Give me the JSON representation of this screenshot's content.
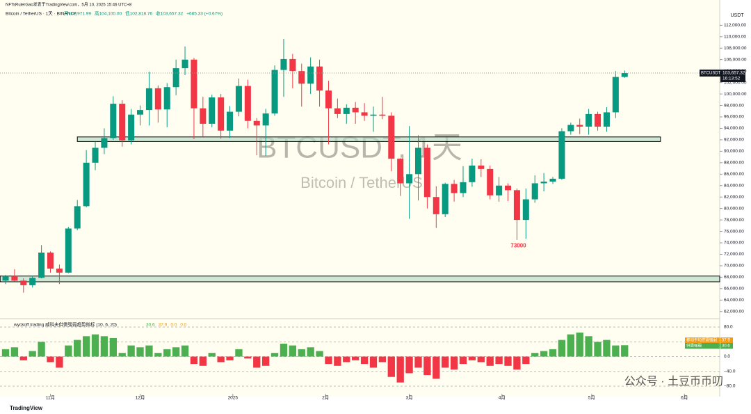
{
  "header": {
    "byline": "NFTsRulerGao发表于TradingView.com，5月 10, 2025 15:46 UTC+8",
    "symbol": "Bitcoin / TetherUS · 1天 · BINANCE",
    "ohlc": [
      "开102,971.99",
      "高104,100.00",
      "低102,818.76",
      "收103,657.32",
      "+685.33 (+0.67%)"
    ]
  },
  "watermark": {
    "ticker": "BTCUSDT, 1天",
    "name": "Bitcoin / TetherUS",
    "footer": "公众号 · 土豆币币叨"
  },
  "brand": "TradingView",
  "chart_data": [
    {
      "type": "candlestick",
      "currency": "USDT",
      "up_color": "#089981",
      "down_color": "#f23645",
      "open": [
        67400,
        68200,
        67400,
        66600,
        67900,
        72300,
        69500,
        68800,
        76500,
        80400,
        88000,
        90600,
        92300,
        98300,
        91900,
        96400,
        97200,
        101000,
        97300,
        101200,
        104500,
        106000,
        97500,
        94800,
        99400,
        93600,
        96900,
        101400,
        95300,
        94500,
        96600,
        104200,
        106100,
        104000,
        101800,
        104800,
        100600,
        97500,
        96500,
        97600,
        96800,
        96200,
        96400,
        96200,
        88700,
        84400,
        86000,
        90600,
        82000,
        79000,
        84300,
        82700,
        84600,
        87500,
        86900,
        82300,
        84000,
        83200,
        78000,
        81600,
        84400,
        84700,
        85200,
        93500,
        94600,
        94300,
        96500,
        94300,
        96800,
        102971.99
      ],
      "high": [
        68400,
        69400,
        67800,
        68300,
        73600,
        72500,
        70200,
        76800,
        81500,
        90200,
        91700,
        94000,
        99600,
        98900,
        97400,
        98000,
        103900,
        101500,
        101900,
        106000,
        108300,
        106300,
        99500,
        99900,
        100000,
        97900,
        102700,
        102500,
        95800,
        97400,
        105000,
        109600,
        107000,
        105300,
        106400,
        106000,
        102300,
        99200,
        98200,
        98600,
        98400,
        97800,
        99500,
        96800,
        88800,
        94400,
        92800,
        91200,
        83900,
        84500,
        85000,
        87400,
        88700,
        88600,
        87500,
        85500,
        84400,
        83500,
        83500,
        85800,
        86200,
        85500,
        94000,
        95000,
        95700,
        97400,
        96900,
        97700,
        104000,
        104100
      ],
      "low": [
        66800,
        67300,
        65300,
        66200,
        67800,
        68800,
        66800,
        68700,
        76200,
        80200,
        86700,
        89500,
        92000,
        90800,
        91200,
        94500,
        94500,
        95000,
        94200,
        99800,
        103300,
        92100,
        92500,
        94200,
        92200,
        92300,
        96100,
        94000,
        89300,
        89200,
        96200,
        99500,
        101000,
        97800,
        100000,
        97800,
        91200,
        95800,
        94800,
        94800,
        95300,
        93400,
        95600,
        86500,
        82200,
        78200,
        81400,
        80000,
        76600,
        78500,
        81200,
        82000,
        83800,
        85500,
        81600,
        81200,
        81300,
        74500,
        74700,
        81000,
        83000,
        84300,
        85000,
        92900,
        93000,
        92900,
        93600,
        93400,
        95800,
        102818.76
      ],
      "close": [
        68200,
        67400,
        66600,
        67900,
        72300,
        69500,
        68800,
        76500,
        80400,
        88000,
        90600,
        92300,
        98300,
        91900,
        96400,
        97200,
        101000,
        97300,
        101200,
        104500,
        106000,
        97500,
        94800,
        99400,
        93600,
        96900,
        101400,
        95300,
        94500,
        96600,
        104200,
        106100,
        104000,
        101800,
        104800,
        100600,
        97500,
        96500,
        97600,
        96800,
        96200,
        96400,
        96200,
        88700,
        84400,
        86000,
        90600,
        82000,
        79000,
        84300,
        82700,
        84600,
        87500,
        86900,
        82300,
        84000,
        83200,
        78000,
        81600,
        84400,
        84700,
        85200,
        93500,
        94600,
        94300,
        96500,
        94300,
        96800,
        102971.99,
        103657.32
      ],
      "last_price": {
        "value": 103657.32,
        "label": "103,657.32"
      },
      "ticker": "BTCUSDT",
      "countdown": "16:13:52",
      "annotation": {
        "text": "73000",
        "value": 73000,
        "index": 56
      },
      "zones": [
        {
          "low": 91700,
          "high": 92500,
          "from": 8,
          "to": 73
        },
        {
          "low": 67200,
          "high": 68200,
          "from": -0.6,
          "to": 79.6
        }
      ],
      "xlim": [
        -0.62,
        79.6
      ],
      "xticks": [
        {
          "value": 5,
          "label": "11月"
        },
        {
          "value": 15,
          "label": "12月"
        },
        {
          "value": 25.33,
          "label": "2025"
        },
        {
          "value": 35.67,
          "label": "2月"
        },
        {
          "value": 45,
          "label": "3月"
        },
        {
          "value": 55.33,
          "label": "4月"
        },
        {
          "value": 65.33,
          "label": "5月"
        },
        {
          "value": 75.67,
          "label": "6月"
        }
      ],
      "ylim": [
        61000,
        113500
      ],
      "yticks": [
        {
          "value": 62000,
          "label": "62,000.00"
        },
        {
          "value": 64000,
          "label": "64,000.00"
        },
        {
          "value": 66000,
          "label": "66,000.00"
        },
        {
          "value": 68000,
          "label": "68,000.00"
        },
        {
          "value": 70000,
          "label": "70,000.00"
        },
        {
          "value": 72000,
          "label": "72,000.00"
        },
        {
          "value": 74000,
          "label": "74,000.00"
        },
        {
          "value": 76000,
          "label": "76,000.00"
        },
        {
          "value": 78000,
          "label": "78,000.00"
        },
        {
          "value": 80000,
          "label": "80,000.00"
        },
        {
          "value": 82000,
          "label": "82,000.00"
        },
        {
          "value": 84000,
          "label": "84,000.00"
        },
        {
          "value": 86000,
          "label": "86,000.00"
        },
        {
          "value": 88000,
          "label": "88,000.00"
        },
        {
          "value": 90000,
          "label": "90,000.00"
        },
        {
          "value": 92000,
          "label": "92,000.00"
        },
        {
          "value": 94000,
          "label": "94,000.00"
        },
        {
          "value": 96000,
          "label": "96,000.00"
        },
        {
          "value": 98000,
          "label": "98,000.00"
        },
        {
          "value": 100000,
          "label": "100,000.00"
        },
        {
          "value": 102000,
          "label": "102,000.00"
        },
        {
          "value": 104000,
          "label": "104,000.00"
        },
        {
          "value": 106000,
          "label": "106,000.00"
        },
        {
          "value": 108000,
          "label": "108,000.00"
        },
        {
          "value": 110000,
          "label": "110,000.00"
        },
        {
          "value": 112000,
          "label": "112,000.00"
        }
      ]
    },
    {
      "type": "histogram",
      "title": "wyckoff trading 威科夫供需强弱趋势指标 (10, 6, 20)",
      "readouts": [
        "30.6",
        "37.9",
        "0.0",
        "0.0"
      ],
      "pos_color": "#4caf50",
      "neg_color": "#f23645",
      "values": [
        20,
        25,
        -10,
        15,
        40,
        -15,
        -30,
        30,
        45,
        55,
        60,
        55,
        50,
        10,
        30,
        25,
        30,
        10,
        20,
        25,
        30,
        -20,
        -25,
        10,
        -15,
        -10,
        20,
        -5,
        -30,
        -25,
        10,
        35,
        30,
        20,
        25,
        15,
        -20,
        -25,
        -15,
        -10,
        -20,
        -30,
        -15,
        -55,
        -70,
        -45,
        -30,
        -50,
        -60,
        -30,
        -35,
        -20,
        -10,
        -15,
        -25,
        -20,
        -25,
        -35,
        -20,
        10,
        15,
        20,
        45,
        60,
        65,
        55,
        40,
        45,
        30,
        30.6
      ],
      "tags": [
        {
          "name": "移动平均供需强弱",
          "value": 37.9,
          "label": "37.9",
          "color": "#f39c12"
        },
        {
          "name": "供需强弱",
          "value": 30.6,
          "label": "30.6",
          "color": "#4caf50"
        }
      ],
      "ylim": [
        -95,
        95
      ],
      "yticks": [
        {
          "value": 80,
          "label": "80.0"
        },
        {
          "value": 40,
          "label": "40.0"
        },
        {
          "value": 0,
          "label": "0.0"
        },
        {
          "value": -40,
          "label": "−40.0"
        },
        {
          "value": -80,
          "label": "−80.0"
        }
      ]
    }
  ]
}
